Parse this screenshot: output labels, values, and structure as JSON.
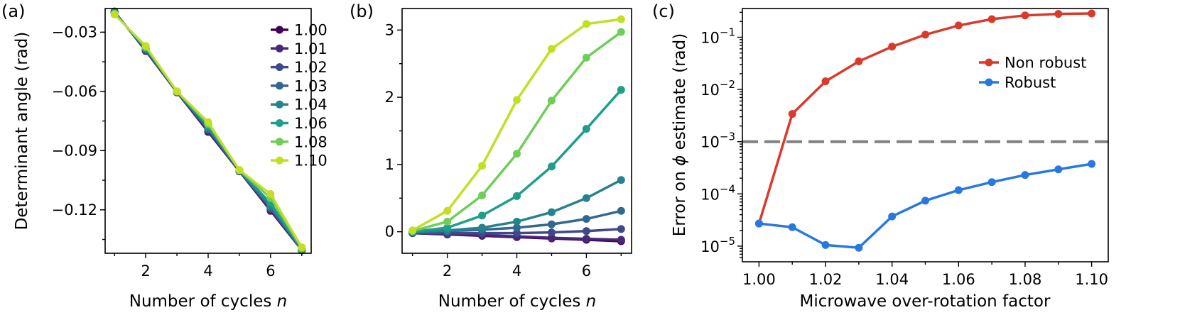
{
  "chart_data": [
    {
      "panel": "(a)",
      "type": "line",
      "xlabel": "Number of cycles",
      "xlabel_var": "n",
      "ylabel": "Determinant angle (rad)",
      "xlim": [
        0.7,
        7.3
      ],
      "ylim": [
        -0.142,
        -0.018
      ],
      "xticks": [
        2,
        4,
        6
      ],
      "yticks": [
        -0.03,
        -0.06,
        -0.09,
        -0.12
      ],
      "ytick_labels": [
        "−0.03",
        "−0.06",
        "−0.09",
        "−0.12"
      ],
      "x": [
        1,
        2,
        3,
        4,
        5,
        6,
        7
      ],
      "legend_position": "top-right",
      "series": [
        {
          "name": "1.00",
          "color": "#440154",
          "values": [
            -0.0195,
            -0.0395,
            -0.0605,
            -0.0805,
            -0.1005,
            -0.1205,
            -0.1405
          ]
        },
        {
          "name": "1.01",
          "color": "#482878",
          "values": [
            -0.0196,
            -0.0393,
            -0.0604,
            -0.08,
            -0.1004,
            -0.12,
            -0.1404
          ]
        },
        {
          "name": "1.02",
          "color": "#3e4989",
          "values": [
            -0.0198,
            -0.039,
            -0.0603,
            -0.0795,
            -0.1003,
            -0.1195,
            -0.1403
          ]
        },
        {
          "name": "1.03",
          "color": "#31688e",
          "values": [
            -0.02,
            -0.0387,
            -0.0602,
            -0.079,
            -0.1002,
            -0.1188,
            -0.1402
          ]
        },
        {
          "name": "1.04",
          "color": "#26828e",
          "values": [
            -0.0202,
            -0.0384,
            -0.0601,
            -0.0785,
            -0.1001,
            -0.118,
            -0.1401
          ]
        },
        {
          "name": "1.06",
          "color": "#1f9e89",
          "values": [
            -0.0205,
            -0.038,
            -0.06,
            -0.0775,
            -0.1,
            -0.1165,
            -0.14
          ]
        },
        {
          "name": "1.08",
          "color": "#6ece58",
          "values": [
            -0.0207,
            -0.0375,
            -0.06,
            -0.0765,
            -0.0999,
            -0.114,
            -0.1395
          ]
        },
        {
          "name": "1.10",
          "color": "#c2df23",
          "values": [
            -0.021,
            -0.037,
            -0.06,
            -0.0755,
            -0.0998,
            -0.112,
            -0.139
          ]
        }
      ]
    },
    {
      "panel": "(b)",
      "type": "line",
      "xlabel": "Number of cycles",
      "xlabel_var": "n",
      "ylabel": "",
      "xlim": [
        0.7,
        7.3
      ],
      "ylim": [
        -0.32,
        3.32
      ],
      "xticks": [
        2,
        4,
        6
      ],
      "yticks": [
        0,
        1,
        2,
        3
      ],
      "ytick_labels": [
        "0",
        "1",
        "2",
        "3"
      ],
      "x": [
        1,
        2,
        3,
        4,
        5,
        6,
        7
      ],
      "series": [
        {
          "name": "1.00",
          "color": "#440154",
          "values": [
            -0.02,
            -0.04,
            -0.06,
            -0.08,
            -0.1,
            -0.12,
            -0.14
          ]
        },
        {
          "name": "1.01",
          "color": "#482878",
          "values": [
            -0.02,
            -0.035,
            -0.05,
            -0.07,
            -0.09,
            -0.105,
            -0.12
          ]
        },
        {
          "name": "1.02",
          "color": "#3e4989",
          "values": [
            -0.02,
            -0.02,
            -0.02,
            -0.02,
            -0.01,
            0.01,
            0.04
          ]
        },
        {
          "name": "1.03",
          "color": "#31688e",
          "values": [
            -0.01,
            0.01,
            0.03,
            0.06,
            0.11,
            0.19,
            0.31
          ]
        },
        {
          "name": "1.04",
          "color": "#26828e",
          "values": [
            -0.01,
            0.02,
            0.06,
            0.15,
            0.29,
            0.5,
            0.77
          ]
        },
        {
          "name": "1.06",
          "color": "#1f9e89",
          "values": [
            0.0,
            0.06,
            0.24,
            0.53,
            0.97,
            1.53,
            2.11
          ]
        },
        {
          "name": "1.08",
          "color": "#6ece58",
          "values": [
            0.01,
            0.15,
            0.54,
            1.16,
            1.95,
            2.59,
            2.97
          ]
        },
        {
          "name": "1.10",
          "color": "#c2df23",
          "values": [
            0.02,
            0.31,
            0.98,
            1.96,
            2.72,
            3.09,
            3.16
          ]
        }
      ]
    },
    {
      "panel": "(c)",
      "type": "line",
      "yscale": "log",
      "xlabel": "Microwave over-rotation factor",
      "ylabel_prefix": "Error on ",
      "ylabel_symbol": "ϕ",
      "ylabel_suffix": " estimate (rad)",
      "xlim": [
        0.995,
        1.105
      ],
      "ylim_log10": [
        -5.3,
        -0.45
      ],
      "xticks": [
        1.0,
        1.02,
        1.04,
        1.06,
        1.08,
        1.1
      ],
      "xtick_labels": [
        "1.00",
        "1.02",
        "1.04",
        "1.06",
        "1.08",
        "1.10"
      ],
      "ytick_exponents": [
        -5,
        -4,
        -3,
        -2,
        -1
      ],
      "ytick_base": "10",
      "threshold": 0.001,
      "legend_position": "upper-right",
      "x": [
        1.0,
        1.01,
        1.02,
        1.03,
        1.04,
        1.05,
        1.06,
        1.07,
        1.08,
        1.09,
        1.1
      ],
      "series": [
        {
          "name": "Non robust",
          "color": "#d93a2b",
          "values": [
            2.7e-05,
            0.0034,
            0.0143,
            0.0345,
            0.066,
            0.112,
            0.168,
            0.222,
            0.262,
            0.28,
            0.285
          ]
        },
        {
          "name": "Robust",
          "color": "#2878e0",
          "values": [
            2.7e-05,
            2.3e-05,
            1.05e-05,
            9.3e-06,
            3.7e-05,
            7.4e-05,
            0.000118,
            0.000168,
            0.00023,
            0.000295,
            0.000375
          ]
        }
      ]
    }
  ]
}
